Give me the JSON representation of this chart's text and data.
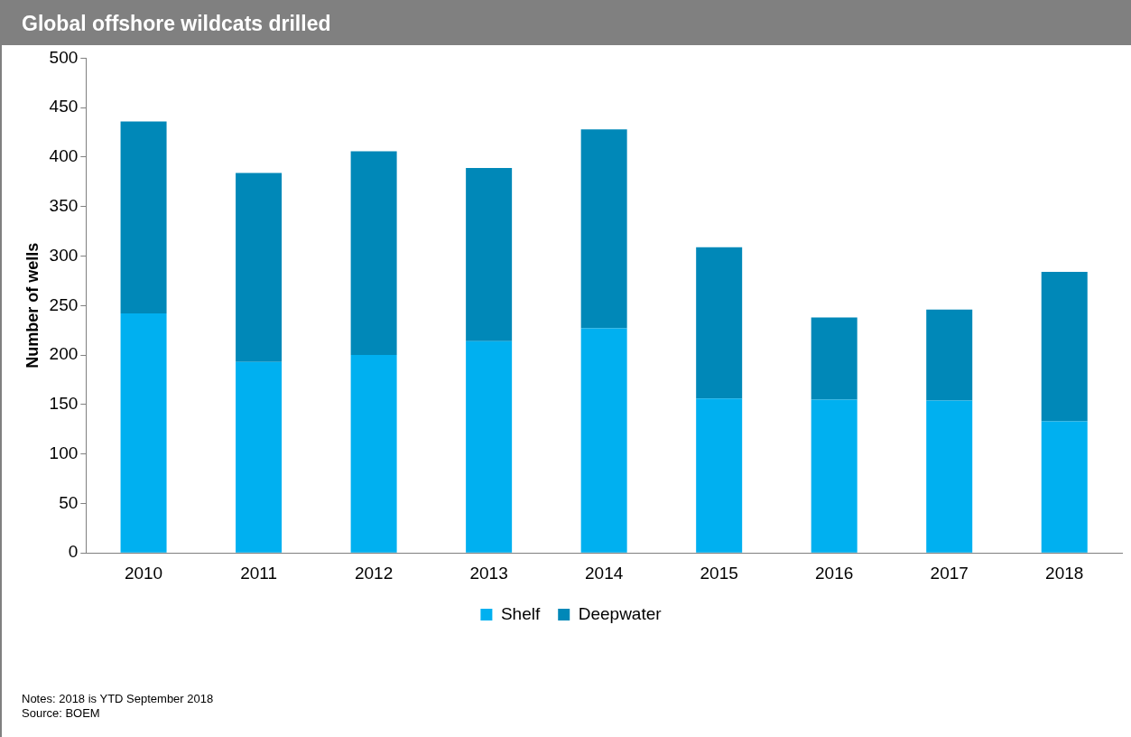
{
  "chart_data": {
    "type": "bar",
    "title": "Global offshore wildcats drilled",
    "ylabel": "Number of wells",
    "categories": [
      "2010",
      "2011",
      "2012",
      "2013",
      "2014",
      "2015",
      "2016",
      "2017",
      "2018"
    ],
    "series": [
      {
        "name": "Shelf",
        "color": "#00b0f0",
        "values": [
          242,
          193,
          200,
          214,
          227,
          156,
          155,
          154,
          133
        ]
      },
      {
        "name": "Deepwater",
        "color": "#0088b8",
        "values": [
          194,
          191,
          206,
          175,
          201,
          153,
          83,
          92,
          151
        ]
      }
    ],
    "stacked": true,
    "ylim": [
      0,
      500
    ],
    "yticks": [
      0,
      50,
      100,
      150,
      200,
      250,
      300,
      350,
      400,
      450,
      500
    ],
    "grid": false,
    "legend": "bottom",
    "annotations": [
      "Notes: 2018 is YTD September 2018",
      "Source: BOEM"
    ]
  }
}
